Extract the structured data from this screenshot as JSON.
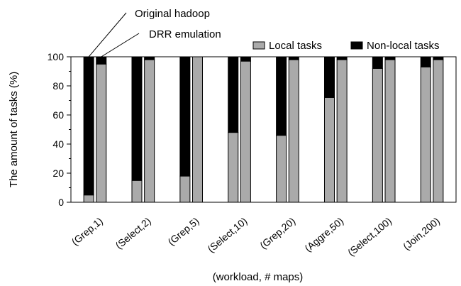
{
  "chart_data": {
    "type": "bar",
    "stacked": true,
    "xlabel": "(workload, # maps)",
    "ylabel": "The amount of tasks (%)",
    "ylim": [
      0,
      100
    ],
    "yticks": [
      0,
      20,
      40,
      60,
      80,
      100
    ],
    "grid": false,
    "legend_position": "top-right",
    "categories": [
      "(Grep,1)",
      "(Select,2)",
      "(Grep,5)",
      "(Select,10)",
      "(Grep,20)",
      "(Aggre,50)",
      "(Select,100)",
      "(Join,200)"
    ],
    "bar_groups": [
      "Original hadoop",
      "DRR emulation"
    ],
    "series": [
      {
        "name": "Local tasks",
        "color": "#aaaaaa",
        "original_hadoop": [
          5,
          15,
          18,
          48,
          46,
          72,
          92,
          93
        ],
        "drr_emulation": [
          95,
          98,
          100,
          97,
          98,
          98,
          98,
          98
        ]
      },
      {
        "name": "Non-local tasks",
        "color": "#000000",
        "original_hadoop": [
          95,
          85,
          82,
          52,
          54,
          28,
          8,
          7
        ],
        "drr_emulation": [
          5,
          2,
          0,
          3,
          2,
          2,
          2,
          2
        ]
      }
    ],
    "annotations": [
      "Original hadoop",
      "DRR emulation"
    ]
  }
}
